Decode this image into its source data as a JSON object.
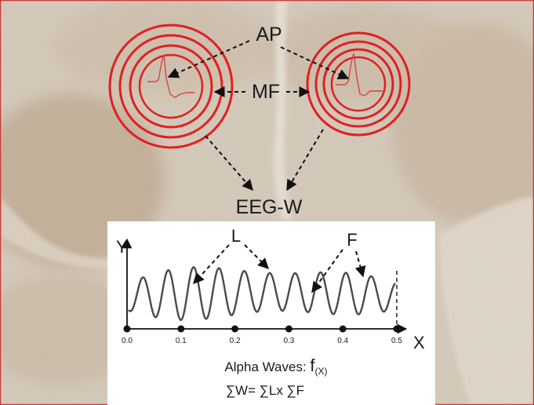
{
  "labels": {
    "ap": "AP",
    "mf": "MF",
    "eeg_w": "EEG-W",
    "l": "L",
    "f": "F"
  },
  "plot": {
    "y_axis": "Y",
    "x_axis": "X",
    "x_ticks": [
      "0.0",
      "0.1",
      "0.2",
      "0.3",
      "0.4",
      "0.5"
    ],
    "caption_text": "Alpha Waves: ",
    "caption_fx": "f",
    "caption_sub": "(X)",
    "formula": "∑W= ∑Lx ∑F"
  },
  "colors": {
    "rings": "#e02020",
    "spike": "#d8453d",
    "wave": "#4a4a4a",
    "tissue": "#d8cfc3",
    "border": "#c43a3a"
  }
}
